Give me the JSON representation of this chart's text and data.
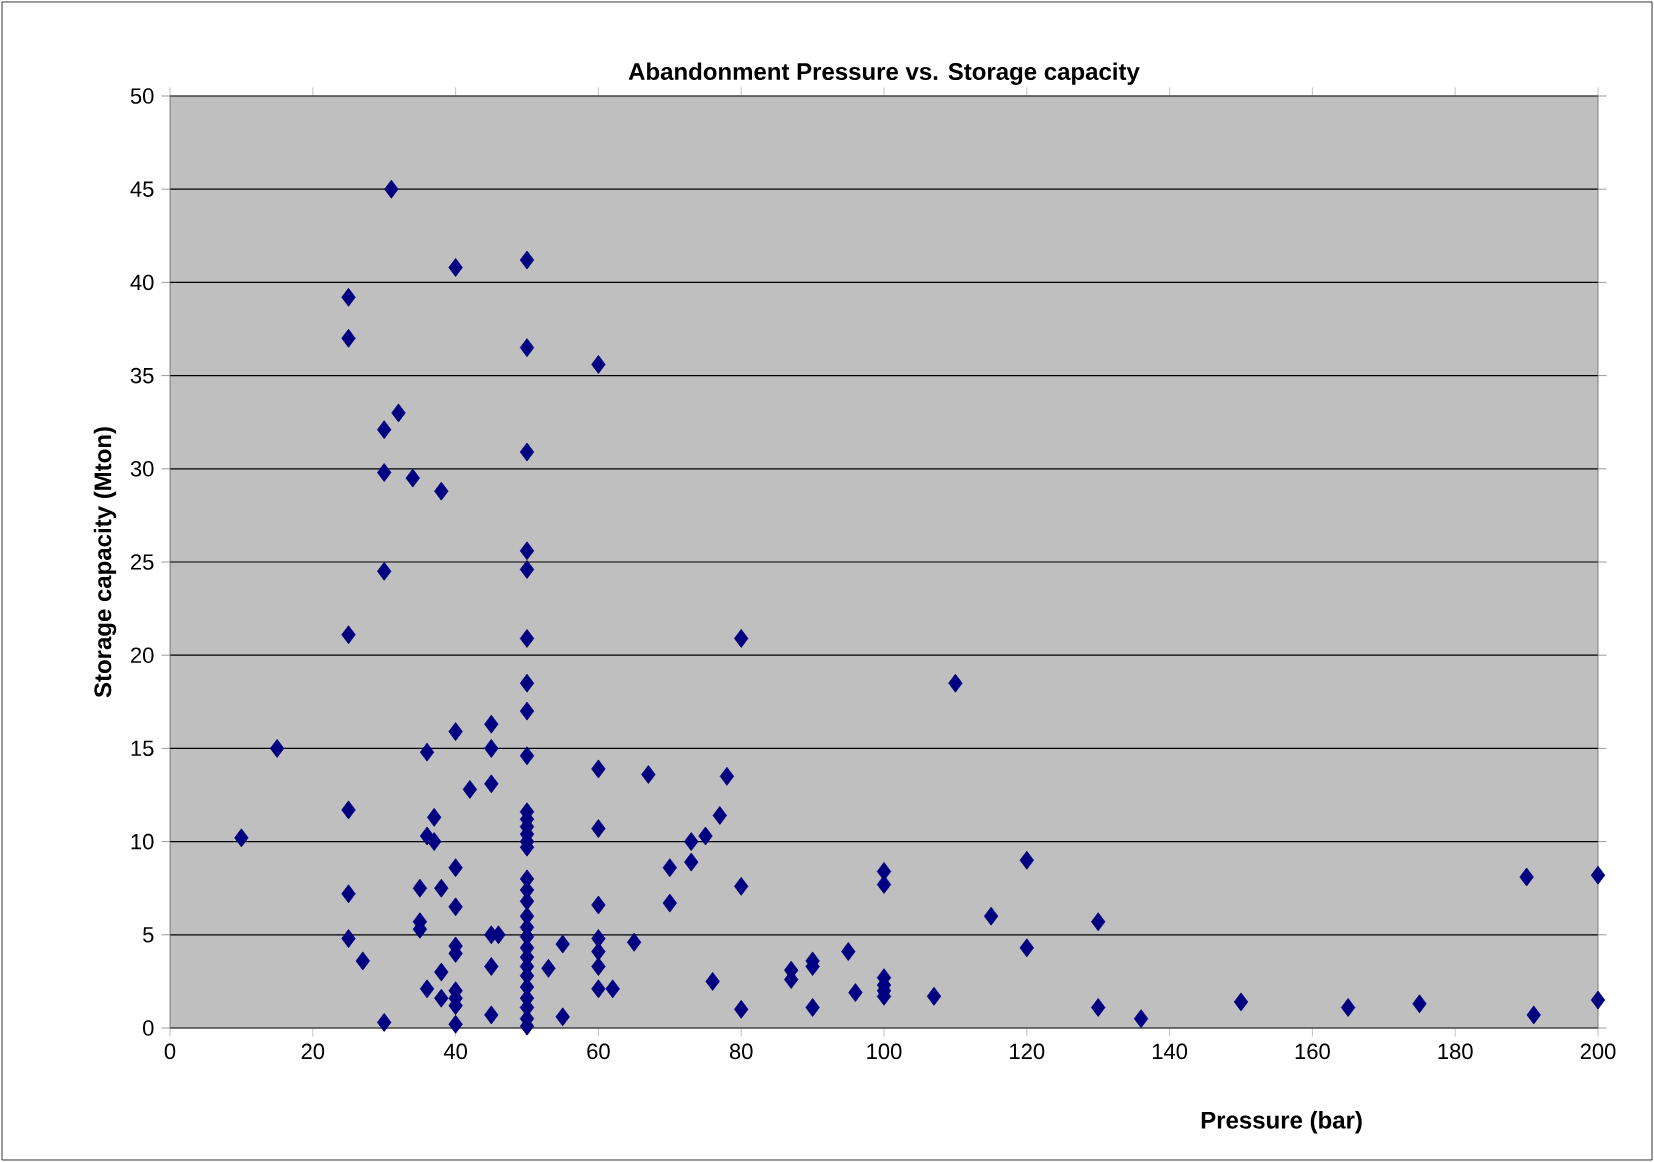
{
  "chart_data": {
    "type": "scatter",
    "title": "Abandonment Pressure vs. Storage capacity",
    "xlabel": "Pressure (bar)",
    "ylabel": "Storage capacity (Mton)",
    "xlim": [
      0,
      200
    ],
    "xticks": [
      0,
      20,
      40,
      60,
      80,
      100,
      120,
      140,
      160,
      180,
      200
    ],
    "ylim": [
      0,
      50
    ],
    "yticks": [
      0,
      5,
      10,
      15,
      20,
      25,
      30,
      35,
      40,
      45,
      50
    ],
    "grid": "y",
    "marker": "diamond",
    "series": [
      {
        "color": "#000080",
        "x": [
          31,
          40,
          50,
          25,
          25,
          50,
          60,
          32,
          30,
          50,
          30,
          34,
          38,
          50,
          50,
          30,
          25,
          50,
          80,
          110,
          50,
          50,
          40,
          45,
          36,
          15,
          45,
          50,
          60,
          67,
          78,
          45,
          42,
          25,
          37,
          50,
          50,
          50,
          50,
          50,
          50,
          60,
          77,
          75,
          73,
          10,
          36,
          37,
          73,
          70,
          40,
          50,
          50,
          35,
          25,
          38,
          80,
          100,
          100,
          120,
          190,
          200,
          50,
          60,
          70,
          40,
          130,
          115,
          35,
          35,
          50,
          50,
          45,
          46,
          25,
          50,
          60,
          55,
          65,
          40,
          40,
          50,
          60,
          95,
          120,
          50,
          27,
          50,
          60,
          45,
          53,
          90,
          90,
          87,
          87,
          38,
          50,
          100,
          76,
          50,
          60,
          62,
          36,
          40,
          40,
          38,
          50,
          100,
          100,
          107,
          96,
          50,
          40,
          80,
          90,
          130,
          150,
          165,
          175,
          200,
          136,
          191,
          45,
          55,
          30,
          40,
          50,
          50,
          100
        ],
        "values": [
          45,
          40.8,
          41.2,
          39.2,
          37,
          36.5,
          35.6,
          33,
          32.1,
          30.9,
          29.8,
          29.5,
          28.8,
          25.6,
          24.6,
          24.5,
          21.1,
          20.9,
          20.9,
          18.5,
          18.5,
          17,
          15.9,
          16.3,
          14.8,
          15,
          15,
          14.6,
          13.9,
          13.6,
          13.5,
          13.1,
          12.8,
          11.7,
          11.3,
          11.6,
          11.2,
          10.8,
          10.4,
          10,
          9.7,
          10.7,
          11.4,
          10.3,
          10,
          10.2,
          10.3,
          10,
          8.9,
          8.6,
          8.6,
          8,
          7.4,
          7.5,
          7.2,
          7.5,
          7.6,
          8.4,
          7.7,
          9,
          8.1,
          8.2,
          6.8,
          6.6,
          6.7,
          6.5,
          5.7,
          6,
          5.7,
          5.3,
          6,
          5.4,
          5,
          5,
          4.8,
          4.9,
          4.8,
          4.5,
          4.6,
          4.4,
          4,
          4.3,
          4.1,
          4.1,
          4.3,
          3.8,
          3.6,
          3.3,
          3.3,
          3.3,
          3.2,
          3.6,
          3.3,
          3.1,
          2.6,
          3,
          2.8,
          2.7,
          2.5,
          2.2,
          2.1,
          2.1,
          2.1,
          2,
          1.6,
          1.6,
          1.6,
          2,
          1.7,
          1.7,
          1.9,
          1.1,
          1.2,
          1,
          1.1,
          1.1,
          1.4,
          1.1,
          1.3,
          1.5,
          0.5,
          0.7,
          0.7,
          0.6,
          0.3,
          0.2,
          0.5,
          0.1,
          2.3
        ]
      }
    ]
  }
}
